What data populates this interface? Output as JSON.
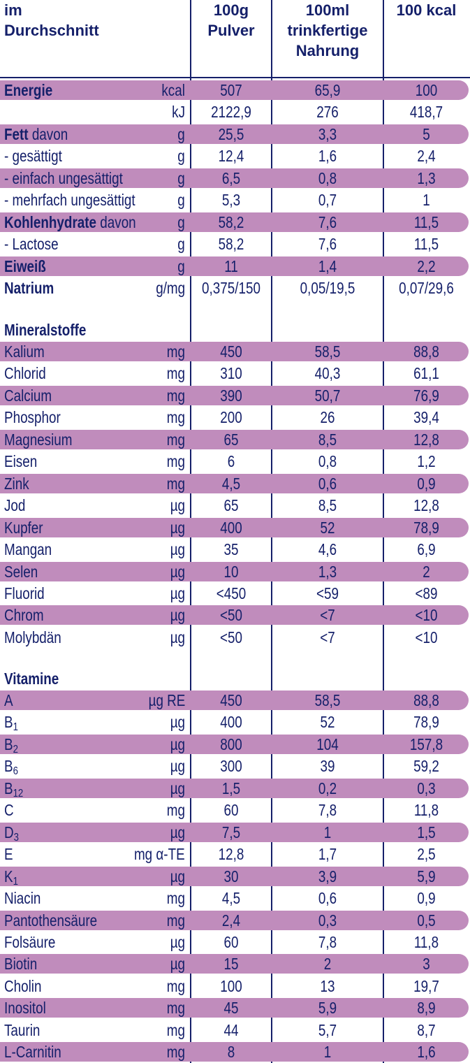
{
  "header": {
    "col0": [
      "im",
      "Durchschnitt"
    ],
    "col1": [
      "100g",
      "Pulver"
    ],
    "col2": [
      "100ml",
      "trinkfertige",
      "Nahrung"
    ],
    "col3": [
      "100 kcal"
    ]
  },
  "colors": {
    "text": "#15206a",
    "band": "#c08cbc"
  },
  "sections": [
    {
      "title": "",
      "rows": [
        {
          "label": "Energie",
          "label_bold": true,
          "unit": "kcal",
          "values": [
            "507",
            "65,9",
            "100"
          ],
          "shaded": true
        },
        {
          "label": "",
          "unit": "kJ",
          "values": [
            "2122,9",
            "276",
            "418,7"
          ],
          "shaded": false
        },
        {
          "label": "Fett",
          "label_bold": true,
          "label_suffix": " davon",
          "unit": "g",
          "values": [
            "25,5",
            "3,3",
            "5"
          ],
          "shaded": true
        },
        {
          "label": "- gesättigt",
          "unit": "g",
          "values": [
            "12,4",
            "1,6",
            "2,4"
          ],
          "shaded": false
        },
        {
          "label": "- einfach ungesättigt",
          "unit": "g",
          "values": [
            "6,5",
            "0,8",
            "1,3"
          ],
          "shaded": true
        },
        {
          "label": "- mehrfach ungesättigt",
          "unit": "g",
          "values": [
            "5,3",
            "0,7",
            "1"
          ],
          "shaded": false
        },
        {
          "label": "Kohlenhydrate",
          "label_bold": true,
          "label_suffix": " davon",
          "unit": "g",
          "values": [
            "58,2",
            "7,6",
            "11,5"
          ],
          "shaded": true
        },
        {
          "label": "- Lactose",
          "unit": "g",
          "values": [
            "58,2",
            "7,6",
            "11,5"
          ],
          "shaded": false
        },
        {
          "label": "Eiweiß",
          "label_bold": true,
          "unit": "g",
          "values": [
            "11",
            "1,4",
            "2,2"
          ],
          "shaded": true
        },
        {
          "label": "Natrium",
          "label_bold": true,
          "unit": "g/mg",
          "values": [
            "0,375/150",
            "0,05/19,5",
            "0,07/29,6"
          ],
          "shaded": false
        }
      ]
    },
    {
      "title": "Mineralstoffe",
      "rows": [
        {
          "label": "Kalium",
          "unit": "mg",
          "values": [
            "450",
            "58,5",
            "88,8"
          ],
          "shaded": true
        },
        {
          "label": "Chlorid",
          "unit": "mg",
          "values": [
            "310",
            "40,3",
            "61,1"
          ],
          "shaded": false
        },
        {
          "label": "Calcium",
          "unit": "mg",
          "values": [
            "390",
            "50,7",
            "76,9"
          ],
          "shaded": true
        },
        {
          "label": "Phosphor",
          "unit": "mg",
          "values": [
            "200",
            "26",
            "39,4"
          ],
          "shaded": false
        },
        {
          "label": "Magnesium",
          "unit": "mg",
          "values": [
            "65",
            "8,5",
            "12,8"
          ],
          "shaded": true
        },
        {
          "label": "Eisen",
          "unit": "mg",
          "values": [
            "6",
            "0,8",
            "1,2"
          ],
          "shaded": false
        },
        {
          "label": "Zink",
          "unit": "mg",
          "values": [
            "4,5",
            "0,6",
            "0,9"
          ],
          "shaded": true
        },
        {
          "label": "Jod",
          "unit": "µg",
          "values": [
            "65",
            "8,5",
            "12,8"
          ],
          "shaded": false
        },
        {
          "label": "Kupfer",
          "unit": "µg",
          "values": [
            "400",
            "52",
            "78,9"
          ],
          "shaded": true
        },
        {
          "label": "Mangan",
          "unit": "µg",
          "values": [
            "35",
            "4,6",
            "6,9"
          ],
          "shaded": false
        },
        {
          "label": "Selen",
          "unit": "µg",
          "values": [
            "10",
            "1,3",
            "2"
          ],
          "shaded": true
        },
        {
          "label": "Fluorid",
          "unit": "µg",
          "values": [
            "<450",
            "<59",
            "<89"
          ],
          "shaded": false
        },
        {
          "label": "Chrom",
          "unit": "µg",
          "values": [
            "<50",
            "<7",
            "<10"
          ],
          "shaded": true
        },
        {
          "label": "Molybdän",
          "unit": "µg",
          "values": [
            "<50",
            "<7",
            "<10"
          ],
          "shaded": false
        }
      ]
    },
    {
      "title": "Vitamine",
      "rows": [
        {
          "label": "A",
          "unit": "µg RE",
          "values": [
            "450",
            "58,5",
            "88,8"
          ],
          "shaded": true
        },
        {
          "label": "B",
          "label_sub": "1",
          "unit": "µg",
          "values": [
            "400",
            "52",
            "78,9"
          ],
          "shaded": false
        },
        {
          "label": "B",
          "label_sub": "2",
          "unit": "µg",
          "values": [
            "800",
            "104",
            "157,8"
          ],
          "shaded": true
        },
        {
          "label": "B",
          "label_sub": "6",
          "unit": "µg",
          "values": [
            "300",
            "39",
            "59,2"
          ],
          "shaded": false
        },
        {
          "label": "B",
          "label_sub": "12",
          "unit": "µg",
          "values": [
            "1,5",
            "0,2",
            "0,3"
          ],
          "shaded": true
        },
        {
          "label": "C",
          "unit": "mg",
          "values": [
            "60",
            "7,8",
            "11,8"
          ],
          "shaded": false
        },
        {
          "label": "D",
          "label_sub": "3",
          "unit": "µg",
          "values": [
            "7,5",
            "1",
            "1,5"
          ],
          "shaded": true
        },
        {
          "label": "E",
          "unit": "mg α-TE",
          "values": [
            "12,8",
            "1,7",
            "2,5"
          ],
          "shaded": false
        },
        {
          "label": "K",
          "label_sub": "1",
          "unit": "µg",
          "values": [
            "30",
            "3,9",
            "5,9"
          ],
          "shaded": true
        },
        {
          "label": "Niacin",
          "unit": "mg",
          "values": [
            "4,5",
            "0,6",
            "0,9"
          ],
          "shaded": false
        },
        {
          "label": "Pantothensäure",
          "unit": "mg",
          "values": [
            "2,4",
            "0,3",
            "0,5"
          ],
          "shaded": true
        },
        {
          "label": "Folsäure",
          "unit": "µg",
          "values": [
            "60",
            "7,8",
            "11,8"
          ],
          "shaded": false
        },
        {
          "label": "Biotin",
          "unit": "µg",
          "values": [
            "15",
            "2",
            "3"
          ],
          "shaded": true
        },
        {
          "label": "Cholin",
          "unit": "mg",
          "values": [
            "100",
            "13",
            "19,7"
          ],
          "shaded": false
        },
        {
          "label": "Inositol",
          "unit": "mg",
          "values": [
            "45",
            "5,9",
            "8,9"
          ],
          "shaded": true
        },
        {
          "label": "Taurin",
          "unit": "mg",
          "values": [
            "44",
            "5,7",
            "8,7"
          ],
          "shaded": false
        },
        {
          "label": "L-Carnitin",
          "unit": "mg",
          "values": [
            "8",
            "1",
            "1,6"
          ],
          "shaded": true
        }
      ]
    }
  ]
}
